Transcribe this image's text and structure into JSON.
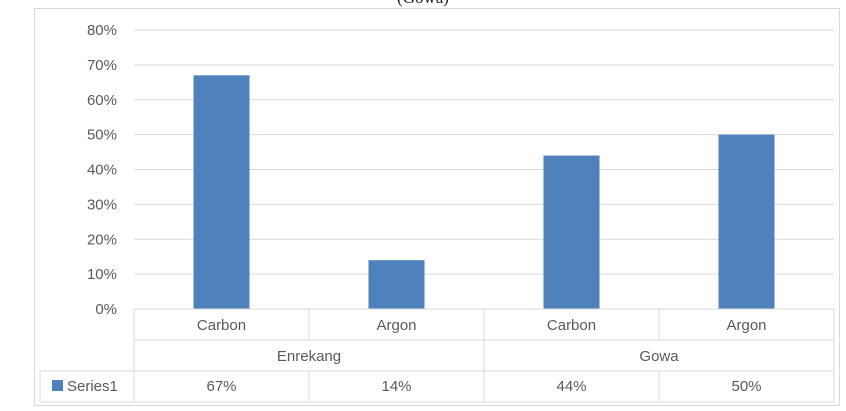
{
  "caption": "(Gowa)",
  "chart_data": {
    "type": "bar",
    "groups": [
      {
        "name": "Enrekang",
        "categories": [
          "Carbon",
          "Argon"
        ]
      },
      {
        "name": "Gowa",
        "categories": [
          "Carbon",
          "Argon"
        ]
      }
    ],
    "series": [
      {
        "name": "Series1",
        "values": [
          0.67,
          0.14,
          0.44,
          0.5
        ],
        "value_labels": [
          "67%",
          "14%",
          "44%",
          "50%"
        ],
        "color": "#4f81bd"
      }
    ],
    "ylim": [
      0,
      0.8
    ],
    "y_ticks": [
      "0%",
      "10%",
      "20%",
      "30%",
      "40%",
      "50%",
      "60%",
      "70%",
      "80%"
    ],
    "grid": true,
    "legend": "data-table",
    "title": "",
    "xlabel": "",
    "ylabel": ""
  }
}
